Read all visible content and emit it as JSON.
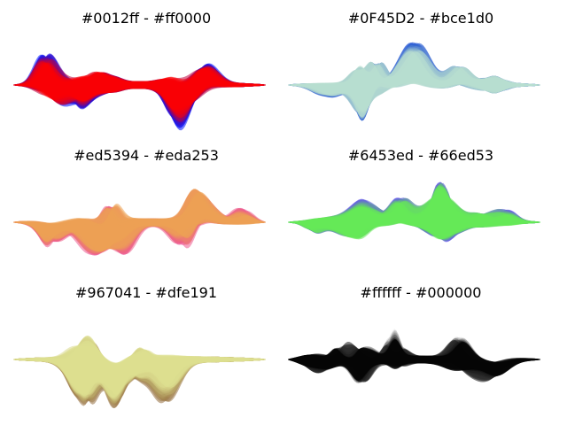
{
  "chart_data": [
    {
      "type": "area",
      "title": "#0012ff - #ff0000",
      "color_start": "#0012ff",
      "color_end": "#ff0000",
      "seed": 11
    },
    {
      "type": "area",
      "title": "#0F45D2 - #bce1d0",
      "color_start": "#0F45D2",
      "color_end": "#bce1d0",
      "seed": 23
    },
    {
      "type": "area",
      "title": "#ed5394 - #eda253",
      "color_start": "#ed5394",
      "color_end": "#eda253",
      "seed": 37
    },
    {
      "type": "area",
      "title": "#6453ed - #66ed53",
      "color_start": "#6453ed",
      "color_end": "#66ed53",
      "seed": 41
    },
    {
      "type": "area",
      "title": "#967041 - #dfe191",
      "color_start": "#967041",
      "color_end": "#dfe191",
      "seed": 53
    },
    {
      "type": "area",
      "title": "#ffffff - #000000",
      "color_start": "#ffffff",
      "color_end": "#000000",
      "seed": 67
    }
  ]
}
